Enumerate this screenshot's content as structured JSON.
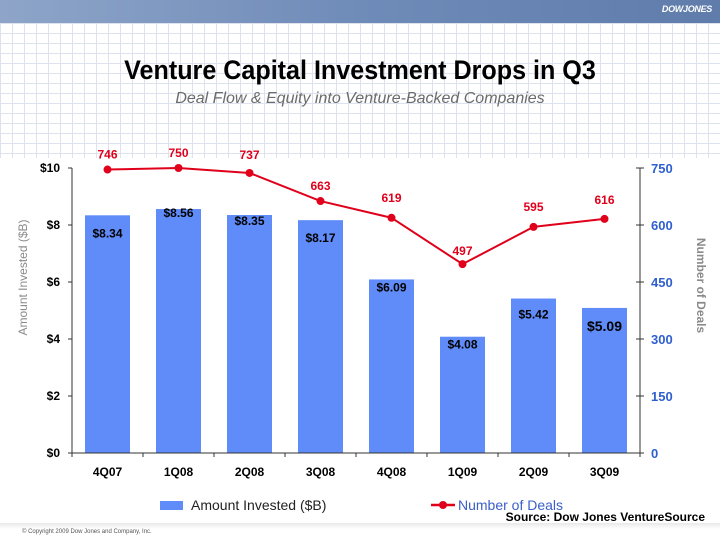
{
  "header": {
    "logo": "DOWJONES"
  },
  "title": "Venture Capital Investment Drops in Q3",
  "subtitle": "Deal Flow & Equity into Venture-Backed Companies",
  "legend": {
    "bars": "Amount Invested ($B)",
    "line": "Number of Deals"
  },
  "source": "Source: Dow Jones VentureSource",
  "copyright": "© Copyright 2009 Dow Jones and Company, Inc.",
  "colors": {
    "bar": "#5f8cf8",
    "line": "#e0001b",
    "right_axis": "#2f5fcf",
    "left_axis": "#000000"
  },
  "chart_data": {
    "type": "bar+line",
    "title": "Venture Capital Investment Drops in Q3",
    "subtitle": "Deal Flow & Equity into Venture-Backed Companies",
    "categories": [
      "4Q07",
      "1Q08",
      "2Q08",
      "3Q08",
      "4Q08",
      "1Q09",
      "2Q09",
      "3Q09"
    ],
    "series": [
      {
        "name": "Amount Invested ($B)",
        "type": "bar",
        "axis": "left",
        "values": [
          8.34,
          8.56,
          8.35,
          8.17,
          6.09,
          4.08,
          5.42,
          5.09
        ],
        "labels": [
          "$8.34",
          "$8.56",
          "$8.35",
          "$8.17",
          "$6.09",
          "$4.08",
          "$5.42",
          "$5.09"
        ]
      },
      {
        "name": "Number of Deals",
        "type": "line",
        "axis": "right",
        "values": [
          746,
          750,
          737,
          663,
          619,
          497,
          595,
          616
        ],
        "labels": [
          "746",
          "750",
          "737",
          "663",
          "619",
          "497",
          "595",
          "616"
        ]
      }
    ],
    "left_axis": {
      "label": "Amount Invested ($B)",
      "ylim": [
        0,
        10
      ],
      "ticks": [
        0,
        2,
        4,
        6,
        8,
        10
      ],
      "tick_labels": [
        "$0",
        "$2",
        "$4",
        "$6",
        "$8",
        "$10"
      ]
    },
    "right_axis": {
      "label": "Number of Deals",
      "ylim": [
        0,
        750
      ],
      "ticks": [
        0,
        150,
        300,
        450,
        600,
        750
      ],
      "tick_labels": [
        "0",
        "150",
        "300",
        "450",
        "600",
        "750"
      ]
    },
    "grid": false,
    "legend_position": "bottom"
  }
}
